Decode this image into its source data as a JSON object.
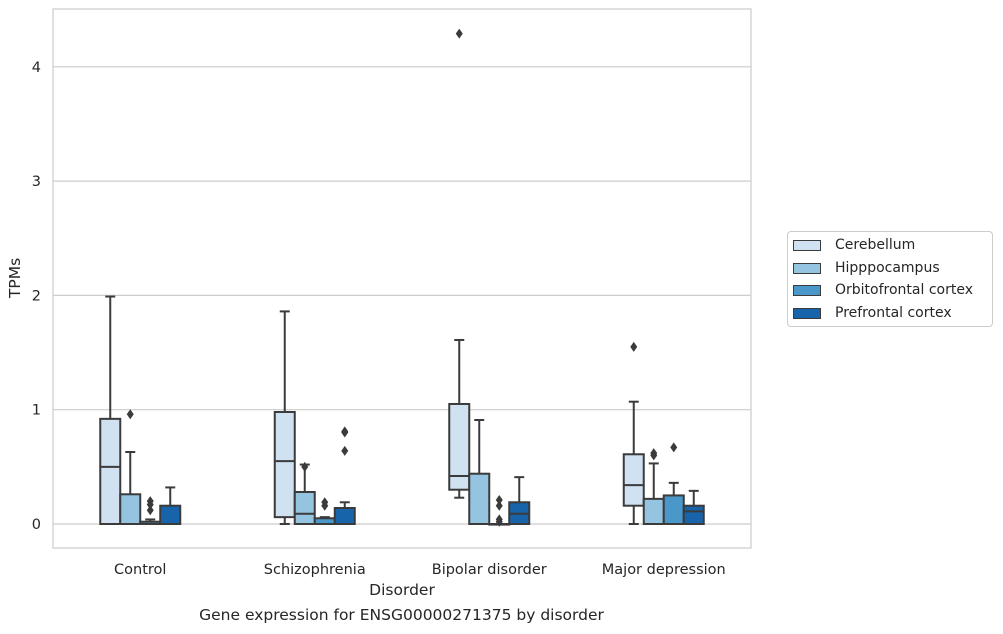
{
  "chart_data": {
    "type": "box",
    "xlabel": "Disorder",
    "ylabel": "TPMs",
    "caption": "Gene expression for ENSG00000271375 by disorder",
    "ylim": [
      -0.2,
      4.5
    ],
    "yticks": [
      "0",
      "1",
      "2",
      "3",
      "4"
    ],
    "grid": "horizontal",
    "legend_placement": "right, outside",
    "categories": [
      "Control",
      "Schizophrenia",
      "Bipolar disorder",
      "Major depression"
    ],
    "series": [
      {
        "name": "Cerebellum",
        "color": "#d0e1f2",
        "boxes": [
          {
            "whislo": 0.0,
            "q1": 0.0,
            "med": 0.5,
            "q3": 0.92,
            "whishi": 1.99,
            "fliers": []
          },
          {
            "whislo": 0.0,
            "q1": 0.06,
            "med": 0.55,
            "q3": 0.98,
            "whishi": 1.86,
            "fliers": []
          },
          {
            "whislo": 0.23,
            "q1": 0.3,
            "med": 0.42,
            "q3": 1.05,
            "whishi": 1.61,
            "fliers": [
              4.29
            ]
          },
          {
            "whislo": 0.0,
            "q1": 0.16,
            "med": 0.34,
            "q3": 0.61,
            "whishi": 1.07,
            "fliers": [
              1.55
            ]
          }
        ]
      },
      {
        "name": "Hipppocampus",
        "color": "#94c4df",
        "boxes": [
          {
            "whislo": 0.0,
            "q1": 0.0,
            "med": 0.0,
            "q3": 0.26,
            "whishi": 0.63,
            "fliers": [
              0.96
            ]
          },
          {
            "whislo": 0.0,
            "q1": 0.0,
            "med": 0.09,
            "q3": 0.28,
            "whishi": 0.52,
            "fliers": [
              0.5
            ]
          },
          {
            "whislo": 0.0,
            "q1": 0.0,
            "med": 0.0,
            "q3": 0.44,
            "whishi": 0.91,
            "fliers": []
          },
          {
            "whislo": 0.0,
            "q1": 0.0,
            "med": 0.0,
            "q3": 0.22,
            "whishi": 0.53,
            "fliers": [
              0.6,
              0.62
            ]
          }
        ]
      },
      {
        "name": "Orbitofrontal cortex",
        "color": "#4a98c9",
        "boxes": [
          {
            "whislo": 0.0,
            "q1": 0.0,
            "med": 0.0,
            "q3": 0.02,
            "whishi": 0.04,
            "fliers": [
              0.12,
              0.17,
              0.2
            ]
          },
          {
            "whislo": 0.0,
            "q1": 0.0,
            "med": 0.0,
            "q3": 0.05,
            "whishi": 0.06,
            "fliers": [
              0.16,
              0.19
            ]
          },
          {
            "whislo": 0.0,
            "q1": 0.0,
            "med": 0.0,
            "q3": 0.0,
            "whishi": 0.0,
            "fliers": [
              0.02,
              0.04,
              0.16,
              0.21
            ]
          },
          {
            "whislo": 0.0,
            "q1": 0.0,
            "med": 0.0,
            "q3": 0.25,
            "whishi": 0.36,
            "fliers": [
              0.67
            ]
          }
        ]
      },
      {
        "name": "Prefrontal cortex",
        "color": "#1764ab",
        "boxes": [
          {
            "whislo": 0.0,
            "q1": 0.0,
            "med": 0.0,
            "q3": 0.16,
            "whishi": 0.32,
            "fliers": []
          },
          {
            "whislo": 0.0,
            "q1": 0.0,
            "med": 0.0,
            "q3": 0.14,
            "whishi": 0.19,
            "fliers": [
              0.64,
              0.8,
              0.81
            ]
          },
          {
            "whislo": 0.0,
            "q1": 0.0,
            "med": 0.09,
            "q3": 0.19,
            "whishi": 0.41,
            "fliers": []
          },
          {
            "whislo": 0.0,
            "q1": 0.0,
            "med": 0.11,
            "q3": 0.16,
            "whishi": 0.29,
            "fliers": []
          }
        ]
      }
    ]
  }
}
